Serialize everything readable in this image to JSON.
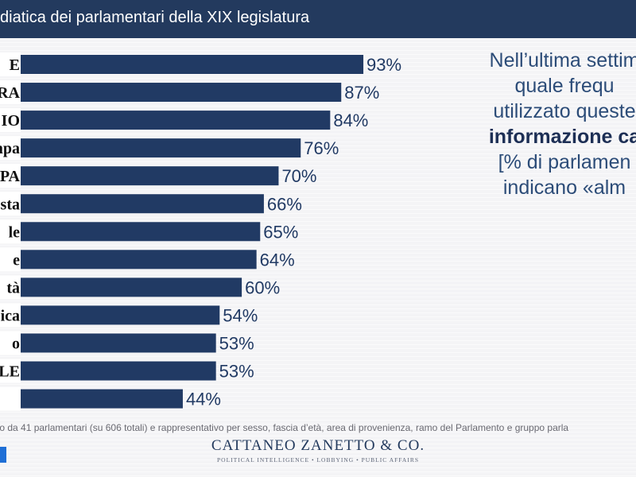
{
  "header": {
    "title": "diatica dei parlamentari della XIX legislatura"
  },
  "question": {
    "line1": "Nell’ultima settim",
    "line2": "quale frequ",
    "line3": "utilizzato queste",
    "line4": "informazione ca",
    "line5": "[% di parlamen",
    "line6": "indicano «alm"
  },
  "footnote": "to da 41 parlamentari (su 606 totali) e rappresentativo per sesso, fascia d’età, area di provenienza, ramo del Parlamento e gruppo parla",
  "brand": {
    "name": "CATTANEO ZANETTO & CO.",
    "tagline": "POLITICAL INTELLIGENCE • LOBBYING • PUBLIC AFFAIRS"
  },
  "colors": {
    "header": "#233a5e",
    "bar": "#213a64",
    "value_text": "#213a64",
    "background": "#f4f4f6"
  },
  "chart_data": {
    "type": "bar",
    "orientation": "horizontal",
    "categories": [
      "E",
      "ERA",
      "IO",
      "npa",
      "PA",
      "sta",
      "le",
      "e",
      "tà",
      "ica",
      "o",
      "NALE",
      ""
    ],
    "values": [
      93,
      87,
      84,
      76,
      70,
      66,
      65,
      64,
      60,
      54,
      53,
      53,
      44
    ],
    "value_labels": [
      "93%",
      "87%",
      "84%",
      "76%",
      "70%",
      "66%",
      "65%",
      "64%",
      "60%",
      "54%",
      "53%",
      "53%",
      "44%"
    ],
    "xlim": [
      0,
      100
    ],
    "title": "",
    "xlabel": "",
    "ylabel": "",
    "grid": false,
    "legend": "none"
  }
}
